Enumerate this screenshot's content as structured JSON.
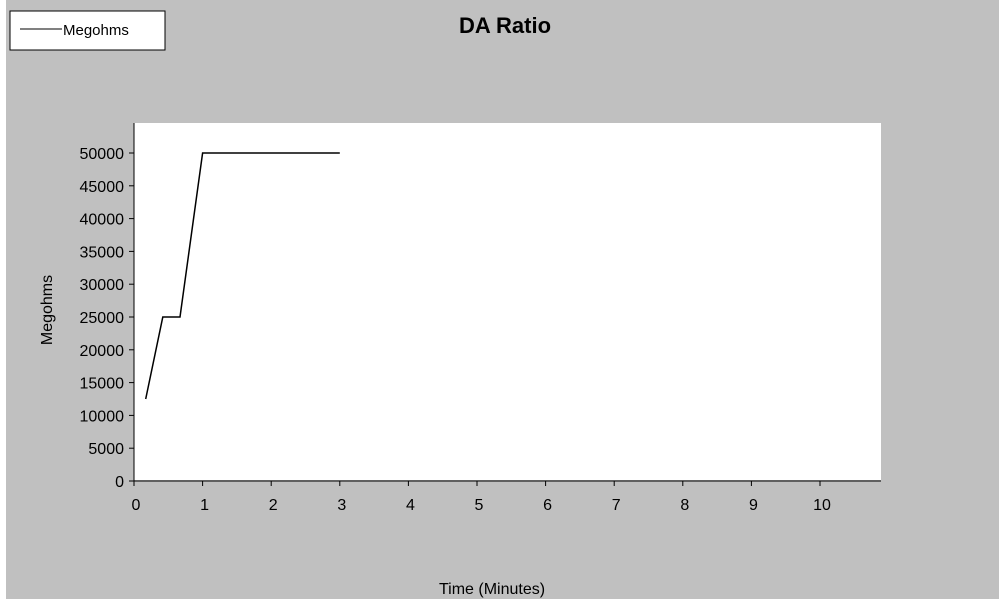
{
  "chart_data": {
    "type": "line",
    "title": "DA Ratio",
    "xlabel": "Time (Minutes)",
    "ylabel": "Megohms",
    "xlim": [
      0,
      11
    ],
    "ylim": [
      0,
      55000
    ],
    "x_ticks": [
      0,
      1,
      2,
      3,
      4,
      5,
      6,
      7,
      8,
      9,
      10
    ],
    "y_ticks": [
      0,
      5000,
      10000,
      15000,
      20000,
      25000,
      30000,
      35000,
      40000,
      45000,
      50000
    ],
    "grid": false,
    "legend": {
      "position": "top-left",
      "entries": [
        "Megohms"
      ]
    },
    "series": [
      {
        "name": "Megohms",
        "color": "#000000",
        "x": [
          0.17,
          0.42,
          0.67,
          1.0,
          3.0
        ],
        "y": [
          12500,
          25000,
          25000,
          50000,
          50000
        ]
      }
    ]
  },
  "colors": {
    "background": "#c0c0c0",
    "plot_area": "#ffffff",
    "frame": "#000000",
    "line": "#000000",
    "text": "#000000"
  }
}
